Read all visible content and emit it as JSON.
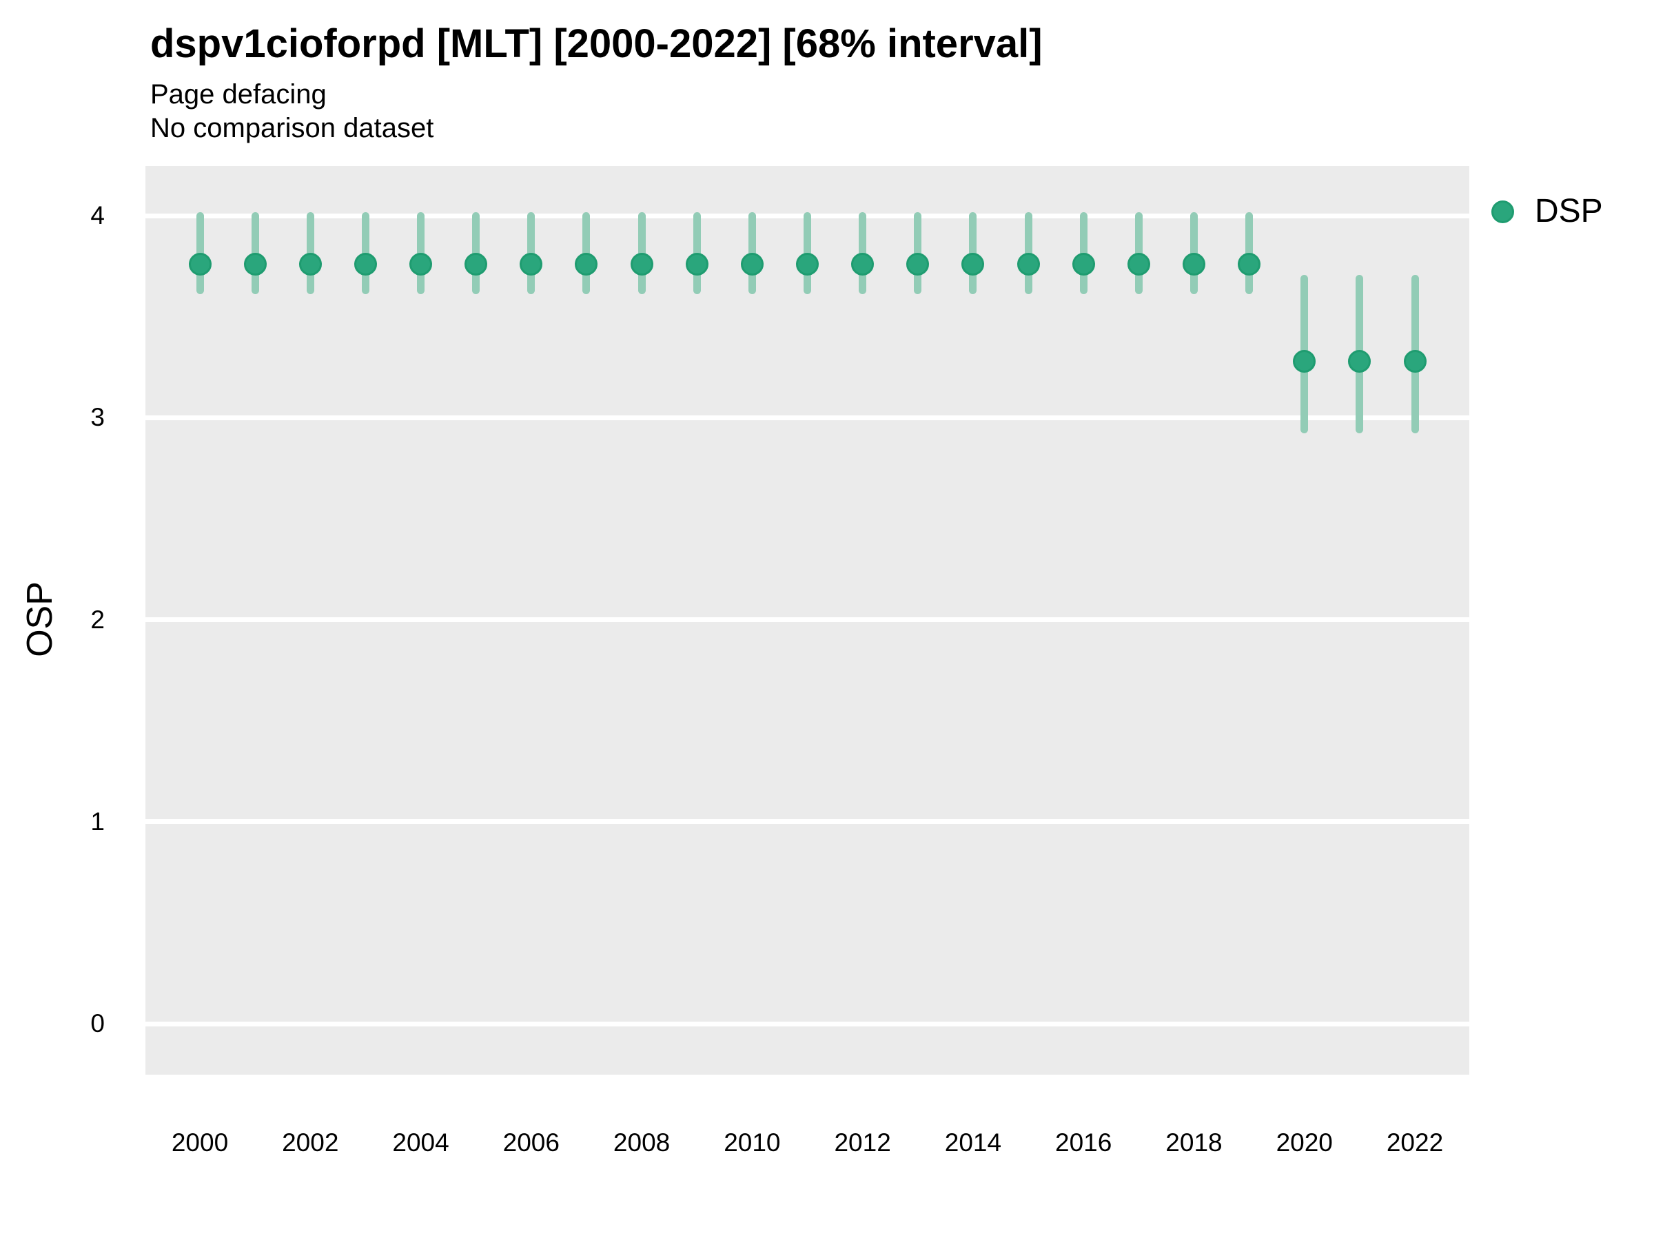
{
  "chart_data": {
    "type": "scatter",
    "variant": "pointrange",
    "title": "dspv1cioforpd [MLT] [2000-2022] [68% interval]",
    "subtitle": "Page defacing",
    "note": "No comparison dataset",
    "xlabel": "",
    "ylabel": "OSP",
    "interval_label": "68% interval",
    "ylim": [
      -0.25,
      4.25
    ],
    "yticks": [
      "4",
      "3",
      "2",
      "1",
      "0"
    ],
    "ytick_values": [
      4,
      3,
      2,
      1,
      0
    ],
    "xticks": [
      "2000",
      "2002",
      "2004",
      "2006",
      "2008",
      "2010",
      "2012",
      "2014",
      "2016",
      "2018",
      "2020",
      "2022"
    ],
    "xtick_values": [
      2000,
      2002,
      2004,
      2006,
      2008,
      2010,
      2012,
      2014,
      2016,
      2018,
      2020,
      2022
    ],
    "grid": "major horizontal white lines on gray panel",
    "legend_position": "right",
    "series": [
      {
        "name": "DSP",
        "points": [
          {
            "year": 2000,
            "value": 3.76,
            "lo": 3.63,
            "hi": 4.0
          },
          {
            "year": 2001,
            "value": 3.76,
            "lo": 3.63,
            "hi": 4.0
          },
          {
            "year": 2002,
            "value": 3.76,
            "lo": 3.63,
            "hi": 4.0
          },
          {
            "year": 2003,
            "value": 3.76,
            "lo": 3.63,
            "hi": 4.0
          },
          {
            "year": 2004,
            "value": 3.76,
            "lo": 3.63,
            "hi": 4.0
          },
          {
            "year": 2005,
            "value": 3.76,
            "lo": 3.63,
            "hi": 4.0
          },
          {
            "year": 2006,
            "value": 3.76,
            "lo": 3.63,
            "hi": 4.0
          },
          {
            "year": 2007,
            "value": 3.76,
            "lo": 3.63,
            "hi": 4.0
          },
          {
            "year": 2008,
            "value": 3.76,
            "lo": 3.63,
            "hi": 4.0
          },
          {
            "year": 2009,
            "value": 3.76,
            "lo": 3.63,
            "hi": 4.0
          },
          {
            "year": 2010,
            "value": 3.76,
            "lo": 3.63,
            "hi": 4.0
          },
          {
            "year": 2011,
            "value": 3.76,
            "lo": 3.63,
            "hi": 4.0
          },
          {
            "year": 2012,
            "value": 3.76,
            "lo": 3.63,
            "hi": 4.0
          },
          {
            "year": 2013,
            "value": 3.76,
            "lo": 3.63,
            "hi": 4.0
          },
          {
            "year": 2014,
            "value": 3.76,
            "lo": 3.63,
            "hi": 4.0
          },
          {
            "year": 2015,
            "value": 3.76,
            "lo": 3.63,
            "hi": 4.0
          },
          {
            "year": 2016,
            "value": 3.76,
            "lo": 3.63,
            "hi": 4.0
          },
          {
            "year": 2017,
            "value": 3.76,
            "lo": 3.63,
            "hi": 4.0
          },
          {
            "year": 2018,
            "value": 3.76,
            "lo": 3.63,
            "hi": 4.0
          },
          {
            "year": 2019,
            "value": 3.76,
            "lo": 3.63,
            "hi": 4.0
          },
          {
            "year": 2020,
            "value": 3.28,
            "lo": 2.94,
            "hi": 3.69
          },
          {
            "year": 2021,
            "value": 3.28,
            "lo": 2.94,
            "hi": 3.69
          },
          {
            "year": 2022,
            "value": 3.28,
            "lo": 2.94,
            "hi": 3.69
          }
        ]
      }
    ],
    "colors": {
      "point_fill": "#2aa67c",
      "point_stroke": "#1f9c70",
      "interval_bar": "#92ccb6",
      "plot_background": "#ebebeb",
      "gridline": "#ffffff",
      "text": "#000000"
    }
  },
  "legend": {
    "items": [
      {
        "label": "DSP",
        "swatch": "green-dot-icon"
      }
    ]
  }
}
